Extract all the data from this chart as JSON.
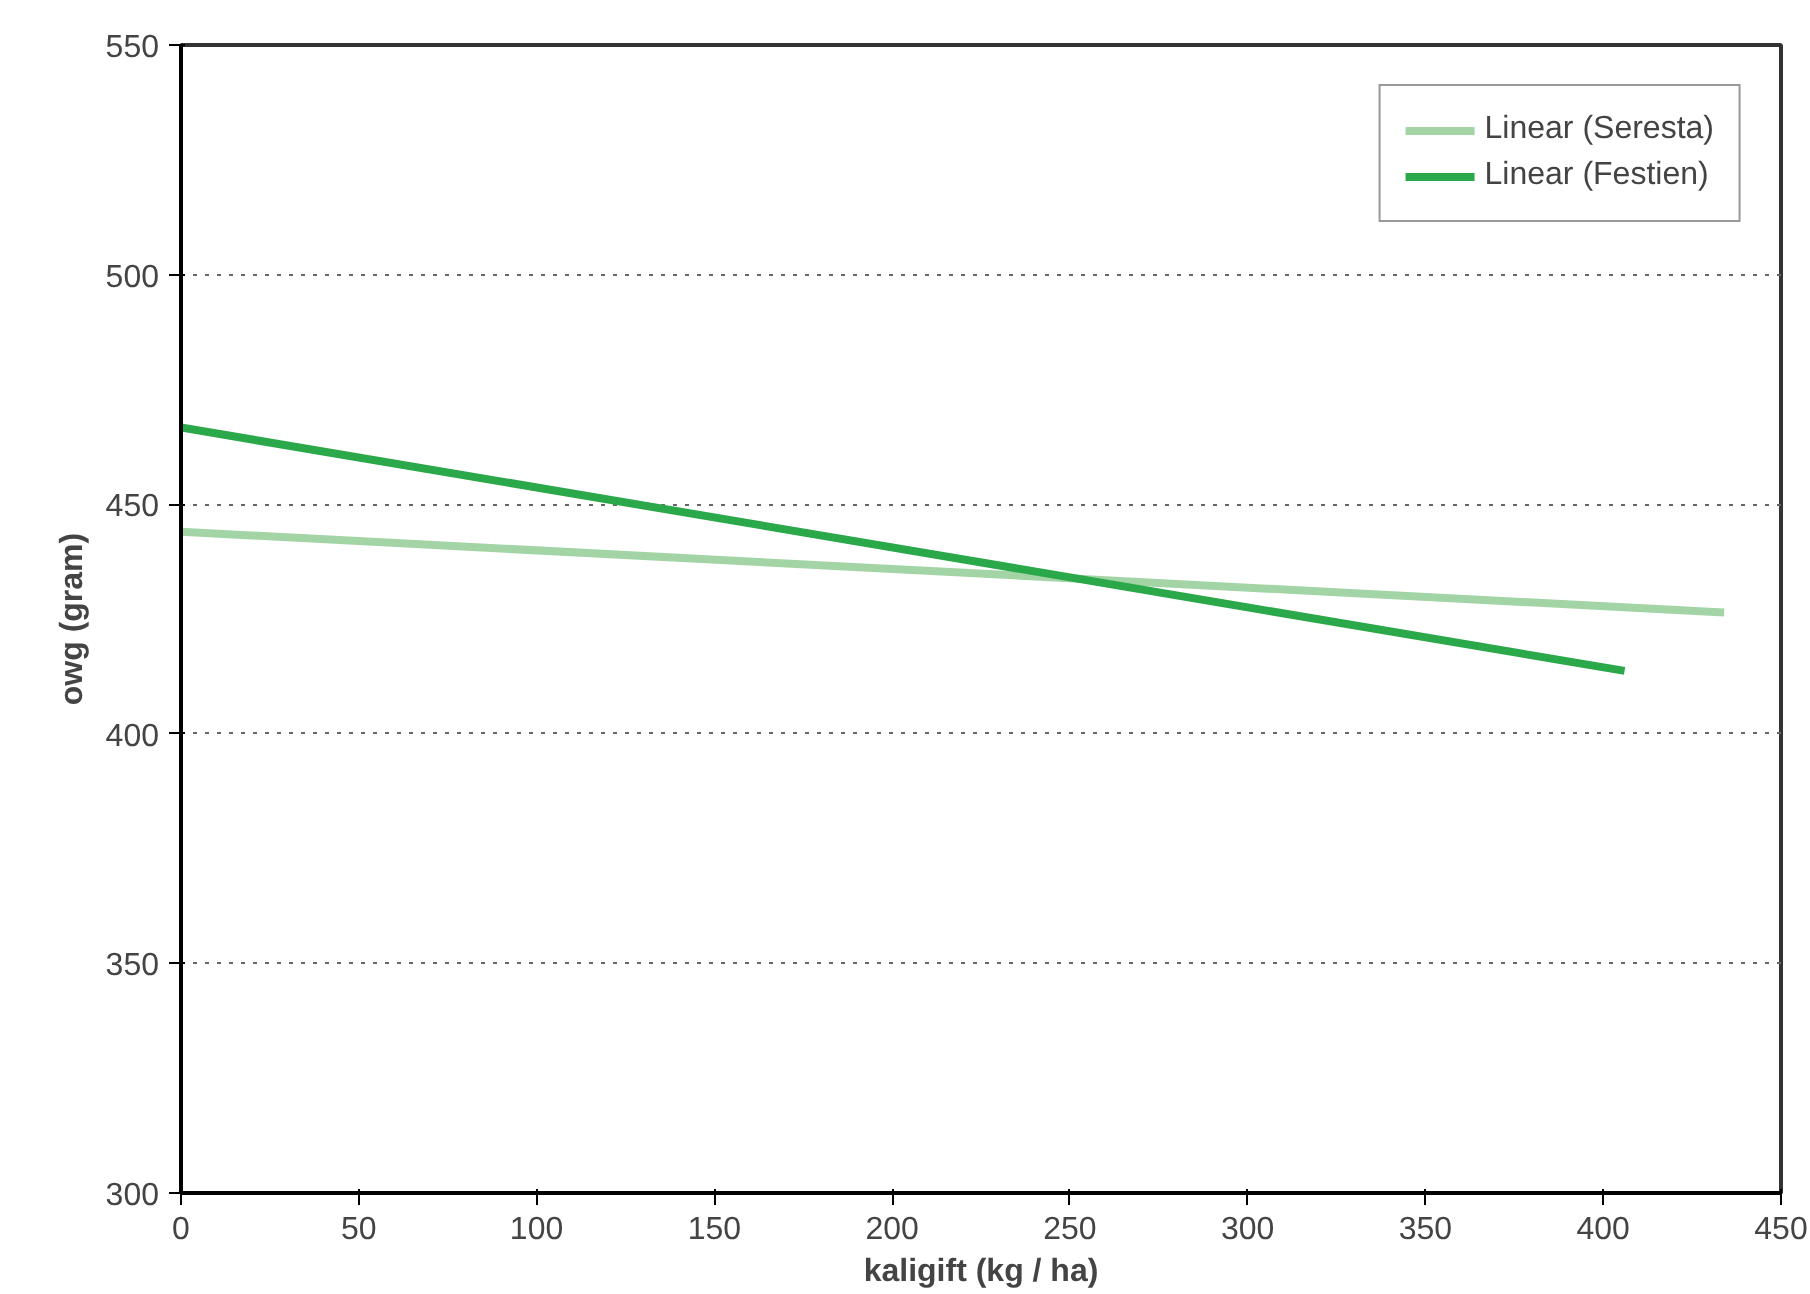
{
  "chart_data": {
    "type": "line",
    "xlabel": "kaligift (kg / ha)",
    "ylabel": "owg (gram)",
    "xlim": [
      0,
      450
    ],
    "ylim": [
      300,
      550
    ],
    "xticks": [
      0,
      50,
      100,
      150,
      200,
      250,
      300,
      350,
      400,
      450
    ],
    "yticks": [
      300,
      350,
      400,
      450,
      500,
      550
    ],
    "grid": "y",
    "legend": "top right",
    "marker": "none",
    "line_style": "solid",
    "series": [
      {
        "name": "Linear (Seresta)",
        "color": "#a3d4a6",
        "x": [
          0,
          434
        ],
        "values": [
          444,
          426.4
        ]
      },
      {
        "name": "Linear (Festien)",
        "color": "#2aa84a",
        "x": [
          0,
          406
        ],
        "values": [
          466.7,
          413.7
        ]
      }
    ]
  }
}
